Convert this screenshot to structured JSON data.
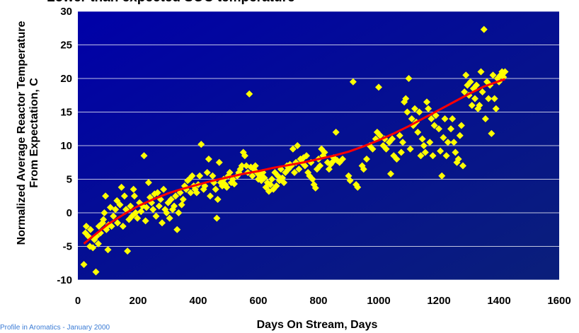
{
  "footer_text": "Profile in Aromatics - January 2000",
  "chart_data": {
    "type": "scatter",
    "title": "Lower than expected SOC temperature",
    "xlabel": "Days On Stream, Days",
    "ylabel_lines": [
      "Normalized Average Reactor Temperature",
      "From Expectation, C"
    ],
    "xlim": [
      0,
      1600
    ],
    "ylim": [
      -10,
      30
    ],
    "xticks": [
      0,
      200,
      400,
      600,
      800,
      1000,
      1200,
      1400,
      1600
    ],
    "yticks": [
      -10,
      -5,
      0,
      5,
      10,
      15,
      20,
      25,
      30
    ],
    "grid": "horizontal",
    "colors": {
      "plot_bg_top": "#0000a8",
      "plot_bg_bottom": "#0a1f7a",
      "points": "#ffff00",
      "trend": "#ff0000",
      "grid": "#ffffff"
    },
    "series": [
      {
        "kind": "points",
        "points": [
          [
            20,
            -7.7
          ],
          [
            25,
            -3
          ],
          [
            28,
            -2
          ],
          [
            35,
            -3.5
          ],
          [
            40,
            -5
          ],
          [
            42,
            -2.5
          ],
          [
            50,
            -5.2
          ],
          [
            55,
            -4
          ],
          [
            60,
            -8.8
          ],
          [
            62,
            -3.5
          ],
          [
            68,
            -4.6
          ],
          [
            70,
            -2
          ],
          [
            75,
            -3
          ],
          [
            82,
            -1.5
          ],
          [
            85,
            -1
          ],
          [
            88,
            0
          ],
          [
            92,
            2.5
          ],
          [
            95,
            -2.5
          ],
          [
            100,
            -5.5
          ],
          [
            102,
            -1.8
          ],
          [
            108,
            0.8
          ],
          [
            112,
            -2
          ],
          [
            118,
            -0.5
          ],
          [
            125,
            0.5
          ],
          [
            130,
            1.8
          ],
          [
            132,
            -1.5
          ],
          [
            140,
            1.2
          ],
          [
            145,
            3.8
          ],
          [
            150,
            -2
          ],
          [
            155,
            2.5
          ],
          [
            160,
            0.5
          ],
          [
            165,
            -5.7
          ],
          [
            170,
            -1
          ],
          [
            175,
            1
          ],
          [
            180,
            -0.5
          ],
          [
            185,
            3.5
          ],
          [
            188,
            2.5
          ],
          [
            192,
            0
          ],
          [
            198,
            -0.8
          ],
          [
            205,
            1.5
          ],
          [
            210,
            0.2
          ],
          [
            215,
            1
          ],
          [
            220,
            8.5
          ],
          [
            225,
            -1.2
          ],
          [
            228,
            0.8
          ],
          [
            235,
            4.5
          ],
          [
            240,
            2.3
          ],
          [
            245,
            1.5
          ],
          [
            250,
            0.5
          ],
          [
            255,
            2.8
          ],
          [
            260,
            -0.5
          ],
          [
            265,
            3
          ],
          [
            270,
            1
          ],
          [
            275,
            2
          ],
          [
            280,
            -1.5
          ],
          [
            285,
            3.5
          ],
          [
            290,
            0.5
          ],
          [
            295,
            0
          ],
          [
            300,
            1.5
          ],
          [
            305,
            -0.8
          ],
          [
            310,
            2
          ],
          [
            315,
            0.5
          ],
          [
            320,
            1
          ],
          [
            325,
            2.5
          ],
          [
            330,
            -2.5
          ],
          [
            335,
            0
          ],
          [
            340,
            3
          ],
          [
            345,
            1.2
          ],
          [
            350,
            2
          ],
          [
            355,
            4
          ],
          [
            360,
            3.5
          ],
          [
            365,
            4.8
          ],
          [
            370,
            5
          ],
          [
            375,
            3
          ],
          [
            380,
            5.5
          ],
          [
            385,
            4
          ],
          [
            390,
            3.5
          ],
          [
            395,
            3
          ],
          [
            400,
            4.2
          ],
          [
            405,
            5.5
          ],
          [
            410,
            10.2
          ],
          [
            418,
            3.5
          ],
          [
            422,
            4
          ],
          [
            430,
            6
          ],
          [
            435,
            8
          ],
          [
            440,
            2.5
          ],
          [
            448,
            5.5
          ],
          [
            452,
            4.5
          ],
          [
            458,
            3.5
          ],
          [
            462,
            -0.8
          ],
          [
            465,
            2
          ],
          [
            470,
            7.5
          ],
          [
            475,
            4.5
          ],
          [
            480,
            4
          ],
          [
            485,
            5
          ],
          [
            490,
            4.2
          ],
          [
            495,
            3.8
          ],
          [
            500,
            5.5
          ],
          [
            505,
            6
          ],
          [
            510,
            4.5
          ],
          [
            515,
            5
          ],
          [
            520,
            4.3
          ],
          [
            530,
            5.5
          ],
          [
            535,
            6
          ],
          [
            540,
            6.5
          ],
          [
            545,
            7
          ],
          [
            550,
            9
          ],
          [
            555,
            8.5
          ],
          [
            560,
            7
          ],
          [
            565,
            6
          ],
          [
            570,
            17.7
          ],
          [
            575,
            6.8
          ],
          [
            580,
            5.5
          ],
          [
            585,
            6.5
          ],
          [
            590,
            7
          ],
          [
            595,
            6
          ],
          [
            600,
            5
          ],
          [
            605,
            5.5
          ],
          [
            610,
            4.8
          ],
          [
            615,
            6
          ],
          [
            620,
            5.2
          ],
          [
            625,
            3.8
          ],
          [
            630,
            4.5
          ],
          [
            635,
            3.2
          ],
          [
            640,
            4.2
          ],
          [
            645,
            5
          ],
          [
            650,
            3.5
          ],
          [
            655,
            6
          ],
          [
            660,
            4
          ],
          [
            665,
            5.5
          ],
          [
            670,
            4.8
          ],
          [
            675,
            6.5
          ],
          [
            680,
            5.2
          ],
          [
            685,
            4.5
          ],
          [
            690,
            6
          ],
          [
            695,
            7
          ],
          [
            700,
            6.5
          ],
          [
            705,
            7.2
          ],
          [
            710,
            7
          ],
          [
            715,
            9.5
          ],
          [
            720,
            6
          ],
          [
            725,
            7.5
          ],
          [
            730,
            10
          ],
          [
            735,
            6.5
          ],
          [
            740,
            8
          ],
          [
            745,
            7.5
          ],
          [
            750,
            8.2
          ],
          [
            755,
            7
          ],
          [
            760,
            8.5
          ],
          [
            765,
            6
          ],
          [
            770,
            5.5
          ],
          [
            775,
            7.5
          ],
          [
            780,
            5
          ],
          [
            785,
            4.2
          ],
          [
            790,
            3.7
          ],
          [
            795,
            6.5
          ],
          [
            800,
            8
          ],
          [
            805,
            7
          ],
          [
            810,
            9.5
          ],
          [
            815,
            8.5
          ],
          [
            820,
            9
          ],
          [
            830,
            7.5
          ],
          [
            835,
            6.5
          ],
          [
            840,
            7.2
          ],
          [
            845,
            7.5
          ],
          [
            850,
            8.2
          ],
          [
            855,
            8
          ],
          [
            858,
            12
          ],
          [
            862,
            7.8
          ],
          [
            870,
            7.5
          ],
          [
            880,
            8
          ],
          [
            900,
            5.5
          ],
          [
            905,
            4.8
          ],
          [
            915,
            19.5
          ],
          [
            925,
            4.2
          ],
          [
            930,
            3.8
          ],
          [
            945,
            7
          ],
          [
            950,
            6.5
          ],
          [
            960,
            8
          ],
          [
            970,
            10
          ],
          [
            980,
            9.5
          ],
          [
            990,
            11
          ],
          [
            995,
            12
          ],
          [
            1000,
            18.7
          ],
          [
            1005,
            11.5
          ],
          [
            1015,
            10
          ],
          [
            1020,
            11
          ],
          [
            1025,
            9.5
          ],
          [
            1035,
            10.5
          ],
          [
            1040,
            5.8
          ],
          [
            1045,
            11
          ],
          [
            1050,
            8.5
          ],
          [
            1060,
            8
          ],
          [
            1070,
            11.5
          ],
          [
            1075,
            9
          ],
          [
            1080,
            10.5
          ],
          [
            1085,
            16.5
          ],
          [
            1090,
            17
          ],
          [
            1095,
            15
          ],
          [
            1100,
            20
          ],
          [
            1105,
            9.5
          ],
          [
            1110,
            14
          ],
          [
            1115,
            13
          ],
          [
            1120,
            15.5
          ],
          [
            1125,
            13.5
          ],
          [
            1130,
            12
          ],
          [
            1135,
            15
          ],
          [
            1140,
            8.5
          ],
          [
            1145,
            11
          ],
          [
            1150,
            10
          ],
          [
            1155,
            9
          ],
          [
            1160,
            16.5
          ],
          [
            1165,
            15.5
          ],
          [
            1170,
            10.5
          ],
          [
            1175,
            14
          ],
          [
            1180,
            8.5
          ],
          [
            1185,
            13
          ],
          [
            1190,
            14.5
          ],
          [
            1200,
            12.5
          ],
          [
            1205,
            9.2
          ],
          [
            1210,
            5.5
          ],
          [
            1215,
            11.2
          ],
          [
            1220,
            14
          ],
          [
            1225,
            8.5
          ],
          [
            1230,
            10.5
          ],
          [
            1240,
            12.5
          ],
          [
            1245,
            14
          ],
          [
            1250,
            10.5
          ],
          [
            1255,
            9
          ],
          [
            1260,
            7.5
          ],
          [
            1265,
            8
          ],
          [
            1270,
            11.5
          ],
          [
            1275,
            13
          ],
          [
            1280,
            7
          ],
          [
            1285,
            18
          ],
          [
            1290,
            20.5
          ],
          [
            1295,
            19
          ],
          [
            1300,
            17.5
          ],
          [
            1305,
            19.5
          ],
          [
            1310,
            16
          ],
          [
            1315,
            18.5
          ],
          [
            1320,
            17
          ],
          [
            1325,
            19
          ],
          [
            1330,
            15.5
          ],
          [
            1335,
            16
          ],
          [
            1340,
            21
          ],
          [
            1345,
            18
          ],
          [
            1350,
            27.3
          ],
          [
            1355,
            14
          ],
          [
            1360,
            19.5
          ],
          [
            1365,
            17
          ],
          [
            1370,
            19
          ],
          [
            1375,
            11.8
          ],
          [
            1380,
            20.5
          ],
          [
            1385,
            17
          ],
          [
            1390,
            15.5
          ],
          [
            1395,
            20
          ],
          [
            1400,
            19.5
          ],
          [
            1405,
            20.5
          ],
          [
            1410,
            21
          ],
          [
            1415,
            20.2
          ],
          [
            1420,
            21
          ]
        ]
      },
      {
        "kind": "trend",
        "points": [
          [
            20,
            -4.6
          ],
          [
            50,
            -3.5
          ],
          [
            100,
            -1.7
          ],
          [
            150,
            -0.3
          ],
          [
            200,
            1
          ],
          [
            250,
            2
          ],
          [
            300,
            2.9
          ],
          [
            350,
            3.6
          ],
          [
            400,
            4.2
          ],
          [
            450,
            4.8
          ],
          [
            500,
            5.3
          ],
          [
            550,
            5.8
          ],
          [
            600,
            6.2
          ],
          [
            650,
            6.7
          ],
          [
            700,
            7.1
          ],
          [
            750,
            7.5
          ],
          [
            800,
            8
          ],
          [
            850,
            8.5
          ],
          [
            900,
            9.1
          ],
          [
            950,
            9.9
          ],
          [
            1000,
            10.8
          ],
          [
            1050,
            11.8
          ],
          [
            1100,
            12.9
          ],
          [
            1150,
            14.1
          ],
          [
            1200,
            15.3
          ],
          [
            1250,
            16.5
          ],
          [
            1300,
            17.7
          ],
          [
            1350,
            18.8
          ],
          [
            1400,
            19.6
          ],
          [
            1420,
            19.9
          ]
        ]
      }
    ]
  }
}
